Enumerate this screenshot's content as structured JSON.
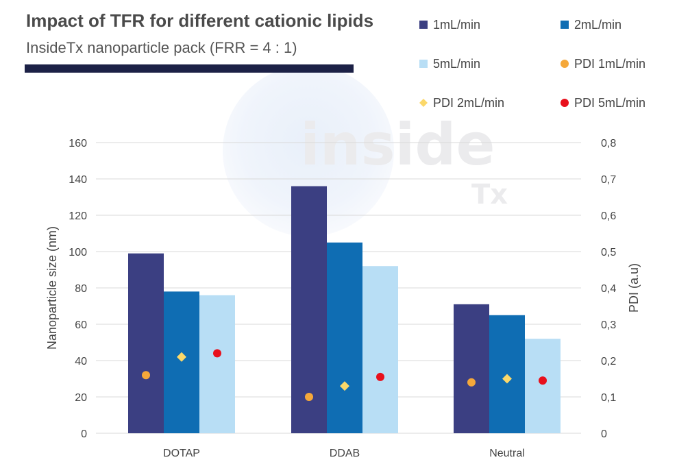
{
  "header": {
    "title": "Impact of TFR for different cationic lipids",
    "subtitle": "InsideTx nanoparticle pack (FRR = 4 : 1)"
  },
  "watermark": {
    "word": "inside",
    "sub": "Tx"
  },
  "colors": {
    "bar_1": "#3b3f82",
    "bar_2": "#0f6db3",
    "bar_5": "#b8def5",
    "pdi_1": "#f5a83a",
    "pdi_2": "#fbd86a",
    "pdi_5": "#e8101c",
    "rule": "#1c2146",
    "grid": "#d9d9d9"
  },
  "chart_data": {
    "type": "bar",
    "title": "Impact of TFR for different cationic lipids",
    "subtitle": "InsideTx nanoparticle pack (FRR = 4 : 1)",
    "categories": [
      "DOTAP",
      "DDAB",
      "Neutral"
    ],
    "ylabel": "Nanoparticle size (nm)",
    "y2label": "PDI (a.u)",
    "ylim": [
      0,
      160
    ],
    "y2lim": [
      0,
      0.8
    ],
    "yticks": [
      "0",
      "20",
      "40",
      "60",
      "80",
      "100",
      "120",
      "140",
      "160"
    ],
    "y2ticks": [
      "0",
      "0,1",
      "0,2",
      "0,3",
      "0,4",
      "0,5",
      "0,6",
      "0,7",
      "0,8"
    ],
    "grid": true,
    "legend_position": "top-right",
    "series": [
      {
        "name": "1mL/min",
        "kind": "bar",
        "values": [
          99,
          136,
          71
        ]
      },
      {
        "name": "2mL/min",
        "kind": "bar",
        "values": [
          78,
          105,
          65
        ]
      },
      {
        "name": "5mL/min",
        "kind": "bar",
        "values": [
          76,
          92,
          52
        ]
      },
      {
        "name": "PDI 1mL/min",
        "kind": "marker",
        "marker": "circle",
        "axis": "right",
        "values": [
          0.16,
          0.1,
          0.14
        ]
      },
      {
        "name": "PDI 2mL/min",
        "kind": "marker",
        "marker": "diamond",
        "axis": "right",
        "values": [
          0.21,
          0.13,
          0.15
        ]
      },
      {
        "name": "PDI 5mL/min",
        "kind": "marker",
        "marker": "circle",
        "axis": "right",
        "values": [
          0.22,
          0.155,
          0.145
        ]
      }
    ]
  }
}
